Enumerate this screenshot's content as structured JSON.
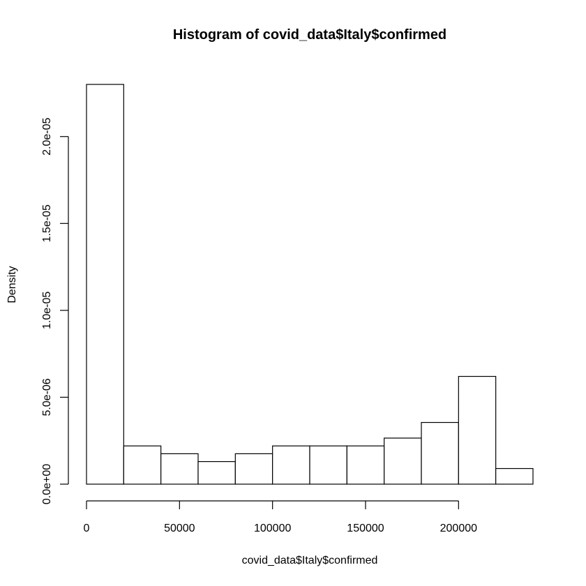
{
  "chart_data": {
    "type": "bar",
    "title": "Histogram of covid_data$Italy$confirmed",
    "xlabel": "covid_data$Italy$confirmed",
    "ylabel": "Density",
    "bins": [
      {
        "start": 0,
        "end": 20000,
        "density": 2.3e-05
      },
      {
        "start": 20000,
        "end": 40000,
        "density": 2.2e-06
      },
      {
        "start": 40000,
        "end": 60000,
        "density": 1.75e-06
      },
      {
        "start": 60000,
        "end": 80000,
        "density": 1.3e-06
      },
      {
        "start": 80000,
        "end": 100000,
        "density": 1.75e-06
      },
      {
        "start": 100000,
        "end": 120000,
        "density": 2.2e-06
      },
      {
        "start": 120000,
        "end": 140000,
        "density": 2.2e-06
      },
      {
        "start": 140000,
        "end": 160000,
        "density": 2.2e-06
      },
      {
        "start": 160000,
        "end": 180000,
        "density": 2.65e-06
      },
      {
        "start": 180000,
        "end": 200000,
        "density": 3.55e-06
      },
      {
        "start": 200000,
        "end": 220000,
        "density": 6.2e-06
      },
      {
        "start": 220000,
        "end": 240000,
        "density": 9e-07
      }
    ],
    "x_ticks": [
      {
        "value": 0,
        "label": "0"
      },
      {
        "value": 50000,
        "label": "50000"
      },
      {
        "value": 100000,
        "label": "100000"
      },
      {
        "value": 150000,
        "label": "150000"
      },
      {
        "value": 200000,
        "label": "200000"
      }
    ],
    "y_ticks": [
      {
        "value": 0,
        "label": "0.0e+00"
      },
      {
        "value": 5e-06,
        "label": "5.0e-06"
      },
      {
        "value": 1e-05,
        "label": "1.0e-05"
      },
      {
        "value": 1.5e-05,
        "label": "1.5e-05"
      },
      {
        "value": 2e-05,
        "label": "2.0e-05"
      }
    ],
    "xlim": [
      0,
      240000
    ],
    "ylim": [
      0,
      2.3e-05
    ],
    "grid": false,
    "legend": "none"
  }
}
